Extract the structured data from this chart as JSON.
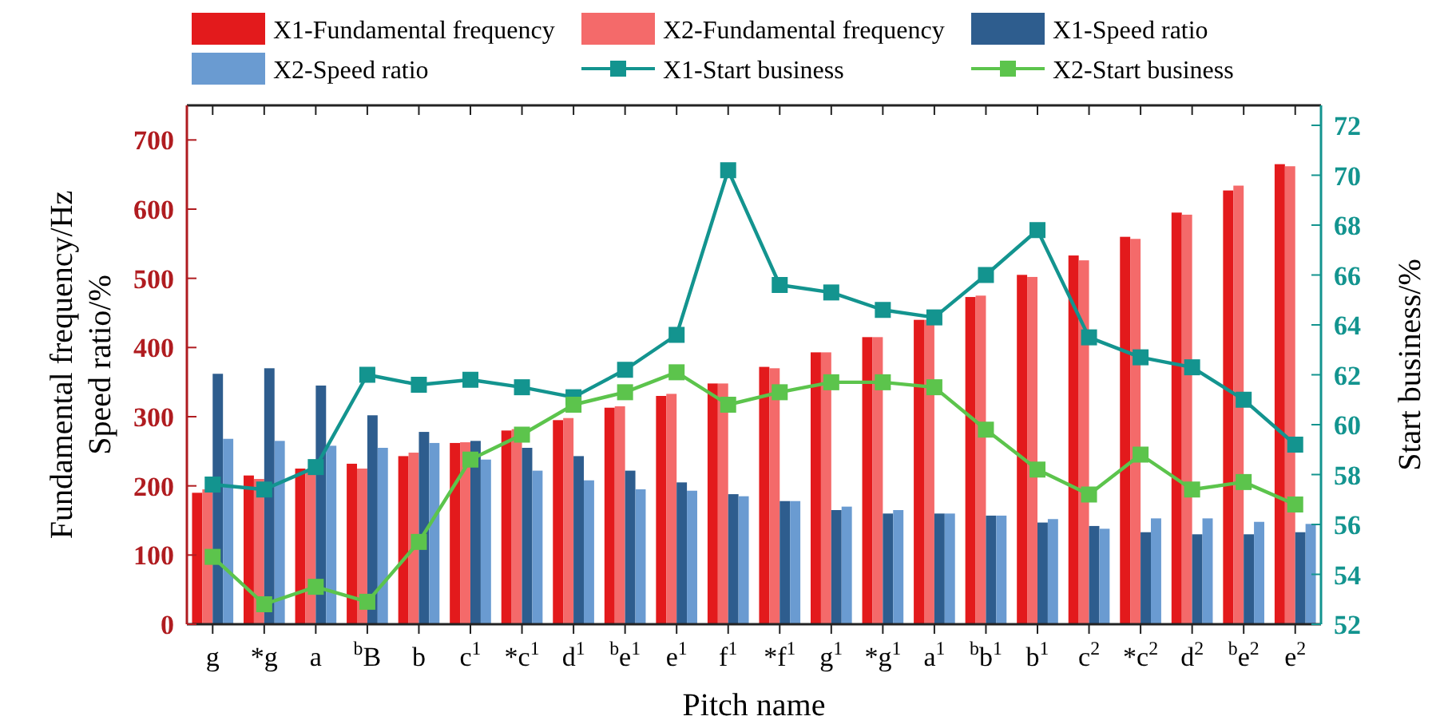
{
  "chart_data": {
    "type": "bar",
    "xlabel": "Pitch name",
    "ylabel": "Fundamental frequency/Hz\nSpeed ratio/%",
    "y2label": "Start business/%",
    "categories": [
      "g",
      "*g",
      "a",
      "$^{b}$B",
      "b",
      "c$^{1}$",
      "*c$^{1}$",
      "d$^{1}$",
      "$^{b}$e$^{1}$",
      "e$^{1}$",
      "f$^{1}$",
      "*f$^{1}$",
      "g$^{1}$",
      "*g$^{1}$",
      "a$^{1}$",
      "$^{b}$b$^{1}$",
      "b$^{1}$",
      "c$^{2}$",
      "*c$^{2}$",
      "d$^{2}$",
      "$^{b}$e$^{2}$",
      "e$^{2}$"
    ],
    "series": [
      {
        "name": "X1-Fundamental frequency",
        "color": "#e31a1c",
        "values": [
          190,
          215,
          225,
          232,
          243,
          262,
          280,
          295,
          313,
          330,
          348,
          372,
          393,
          415,
          440,
          473,
          505,
          533,
          560,
          595,
          627,
          665
        ]
      },
      {
        "name": "X2-Fundamental frequency",
        "color": "#f46a6a",
        "values": [
          195,
          210,
          222,
          225,
          248,
          263,
          282,
          298,
          315,
          333,
          348,
          370,
          393,
          415,
          440,
          475,
          502,
          526,
          557,
          592,
          634,
          662
        ]
      },
      {
        "name": "X1-Speed ratio",
        "color": "#2e5d8e",
        "values": [
          362,
          370,
          345,
          302,
          278,
          265,
          255,
          243,
          222,
          205,
          188,
          178,
          165,
          160,
          160,
          157,
          147,
          142,
          133,
          130,
          130,
          133
        ]
      },
      {
        "name": "X2-Speed ratio",
        "color": "#6a9bd1",
        "values": [
          268,
          265,
          258,
          255,
          262,
          238,
          222,
          208,
          195,
          193,
          185,
          178,
          170,
          165,
          160,
          157,
          152,
          138,
          153,
          153,
          148,
          145
        ]
      },
      {
        "name": "X1-Start business",
        "type": "line",
        "axis": "y2",
        "marker": "square",
        "color": "#13948f",
        "values": [
          57.6,
          57.4,
          58.3,
          62,
          61.6,
          61.8,
          61.5,
          61.1,
          62.2,
          63.6,
          70.2,
          65.6,
          65.3,
          64.6,
          64.3,
          66,
          67.8,
          63.5,
          62.7,
          62.3,
          61,
          59.2
        ]
      },
      {
        "name": "X2-Start business",
        "type": "line",
        "axis": "y2",
        "marker": "square",
        "color": "#5cc44c",
        "values": [
          54.7,
          52.8,
          53.5,
          52.9,
          55.3,
          58.6,
          59.6,
          60.8,
          61.3,
          62.1,
          60.8,
          61.3,
          61.7,
          61.7,
          61.5,
          59.8,
          58.2,
          57.2,
          58.8,
          57.4,
          57.7,
          56.8
        ]
      }
    ],
    "ylim": [
      0,
      750
    ],
    "yticks": [
      0,
      100,
      200,
      300,
      400,
      500,
      600,
      700
    ],
    "y2lim": [
      52,
      72.8
    ],
    "y2ticks": [
      52,
      54,
      56,
      58,
      60,
      62,
      64,
      66,
      68,
      70,
      72
    ],
    "legend": "top",
    "grid": false
  }
}
